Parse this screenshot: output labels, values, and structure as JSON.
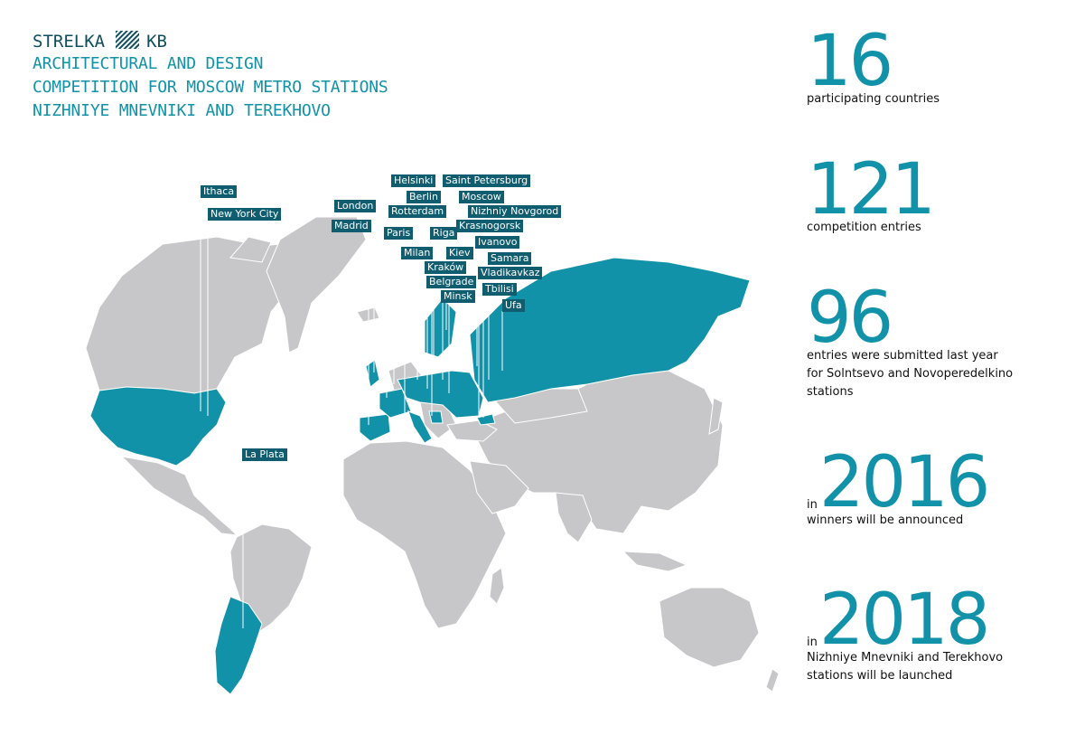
{
  "header": {
    "brand_left": "STRELKA",
    "brand_right": "KB",
    "title_lines": [
      "ARCHITECTURAL AND DESIGN",
      "COMPETITION FOR MOSCOW METRO STATIONS",
      "NIZHNIYE MNEVNIKI AND TEREKHOVO"
    ]
  },
  "colors": {
    "highlight": "#1192a9",
    "land": "#c7c7c9",
    "label_bg": "#0f5d6e",
    "title": "#1192a9"
  },
  "cities": [
    {
      "name": "Ithaca"
    },
    {
      "name": "New York City"
    },
    {
      "name": "London"
    },
    {
      "name": "Madrid"
    },
    {
      "name": "Helsinki"
    },
    {
      "name": "Saint Petersburg"
    },
    {
      "name": "Berlin"
    },
    {
      "name": "Moscow"
    },
    {
      "name": "Rotterdam"
    },
    {
      "name": "Nizhniy Novgorod"
    },
    {
      "name": "Krasnogorsk"
    },
    {
      "name": "Paris"
    },
    {
      "name": "Riga"
    },
    {
      "name": "Ivanovo"
    },
    {
      "name": "Milan"
    },
    {
      "name": "Kiev"
    },
    {
      "name": "Samara"
    },
    {
      "name": "Kraków"
    },
    {
      "name": "Vladikavkaz"
    },
    {
      "name": "Belgrade"
    },
    {
      "name": "Tbilisi"
    },
    {
      "name": "Minsk"
    },
    {
      "name": "Ufa"
    },
    {
      "name": "La Plata"
    }
  ],
  "stats": [
    {
      "prefix": "",
      "value": "16",
      "description_lines": [
        "participating countries"
      ]
    },
    {
      "prefix": "",
      "value": "121",
      "description_lines": [
        "competition entries"
      ]
    },
    {
      "prefix": "",
      "value": "96",
      "description_lines": [
        "entries were submitted last year",
        "for Solntsevo and Novoperedelkino",
        "stations"
      ]
    },
    {
      "prefix": "in",
      "value": "2016",
      "description_lines": [
        "winners will be announced"
      ]
    },
    {
      "prefix": "in",
      "value": "2018",
      "description_lines": [
        "Nizhniye Mnevniki and Terekhovo",
        "stations will be launched"
      ]
    }
  ]
}
